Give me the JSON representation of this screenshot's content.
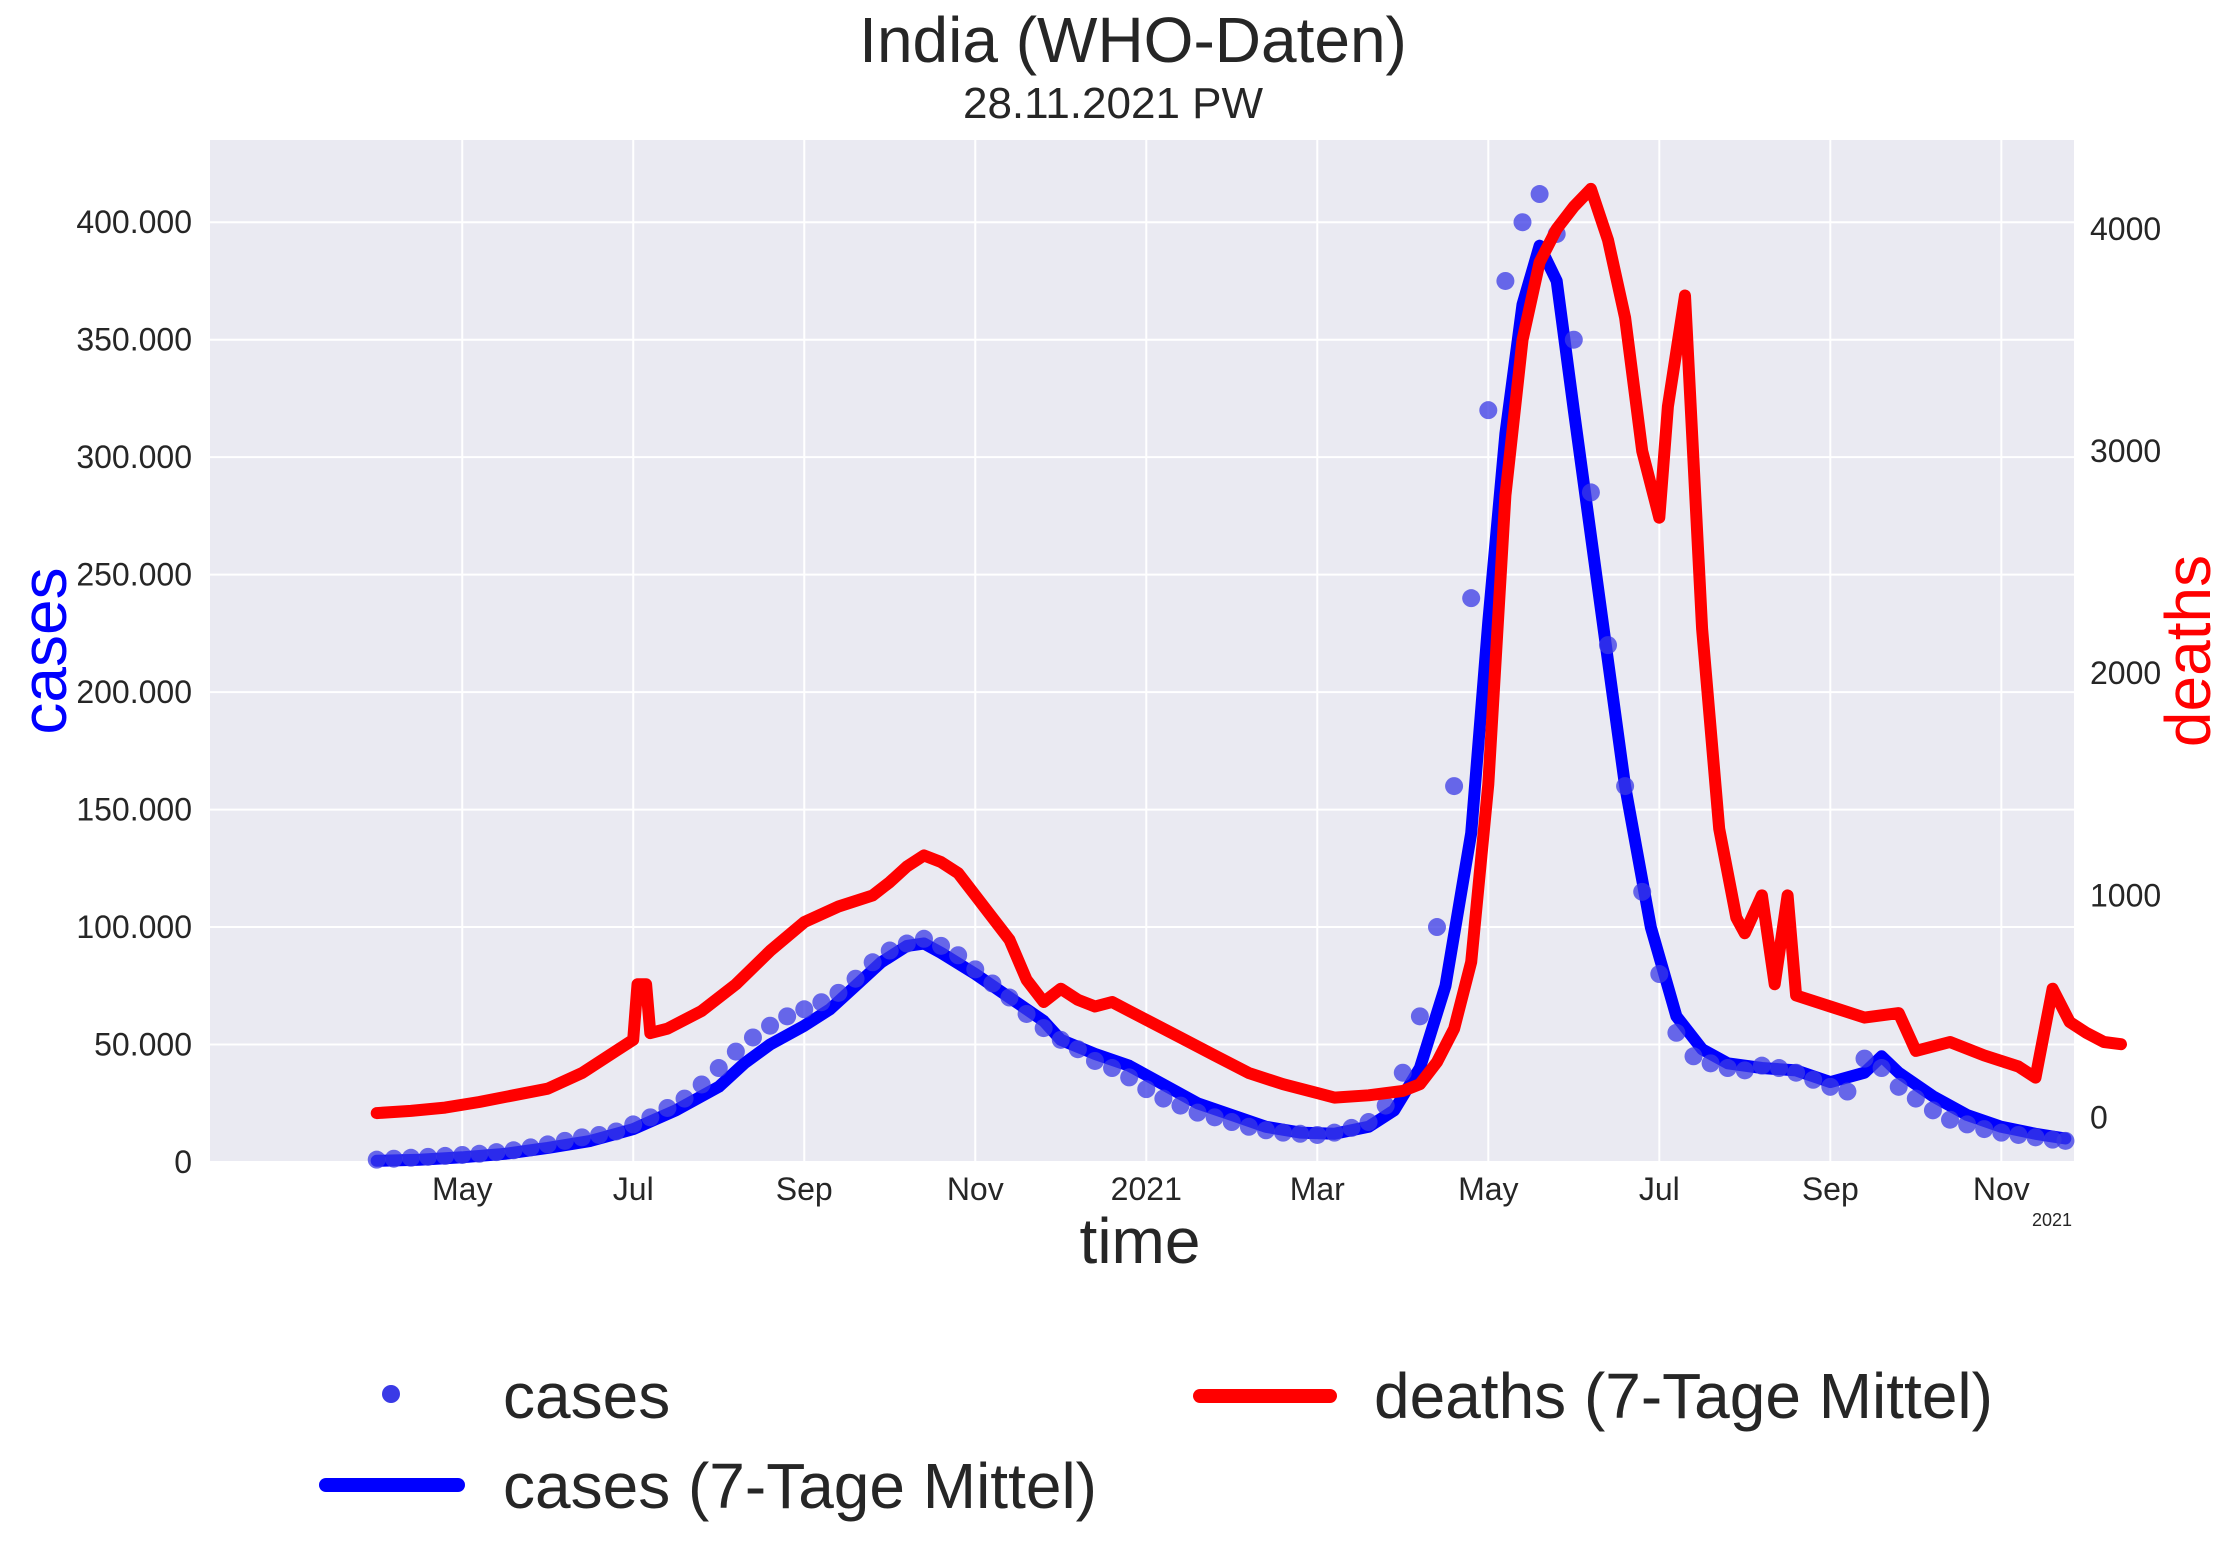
{
  "title": "India  (WHO-Daten)",
  "subtitle": "28.11.2021 PW",
  "chart_data": {
    "type": "line",
    "xlabel": "time",
    "x_offset_label": "2021",
    "x_ticks": [
      "May",
      "Jul",
      "Sep",
      "Nov",
      "2021",
      "Mar",
      "May",
      "Jul",
      "Sep",
      "Nov"
    ],
    "x_tick_months": [
      1,
      3,
      5,
      7,
      9,
      11,
      13,
      15,
      17,
      19
    ],
    "x_range_months": [
      -1.95,
      19.85
    ],
    "y_left": {
      "label": "cases",
      "range": [
        0,
        435000
      ],
      "ticks": [
        0,
        50000,
        100000,
        150000,
        200000,
        250000,
        300000,
        350000,
        400000
      ],
      "tick_labels": [
        "0",
        "50.000",
        "100.000",
        "150.000",
        "200.000",
        "250.000",
        "300.000",
        "350.000",
        "400.000"
      ]
    },
    "y_right": {
      "label": "deaths",
      "range": [
        -200,
        4400
      ],
      "ticks": [
        0,
        1000,
        2000,
        3000,
        4000
      ],
      "tick_labels": [
        "0",
        "1000",
        "2000",
        "3000",
        "4000"
      ]
    },
    "grid": true,
    "legend_position": "bottom",
    "series": [
      {
        "name": "cases",
        "style": "scatter",
        "axis": "left",
        "color": "#3a3ae6",
        "points": [
          [
            0.0,
            1000
          ],
          [
            0.2,
            1400
          ],
          [
            0.4,
            1800
          ],
          [
            0.6,
            2200
          ],
          [
            0.8,
            2600
          ],
          [
            1.0,
            3000
          ],
          [
            1.2,
            3500
          ],
          [
            1.4,
            4200
          ],
          [
            1.6,
            5000
          ],
          [
            1.8,
            6200
          ],
          [
            2.0,
            7500
          ],
          [
            2.2,
            9000
          ],
          [
            2.4,
            10500
          ],
          [
            2.6,
            11500
          ],
          [
            2.8,
            13000
          ],
          [
            3.0,
            16000
          ],
          [
            3.2,
            19000
          ],
          [
            3.4,
            23000
          ],
          [
            3.6,
            27000
          ],
          [
            3.8,
            33000
          ],
          [
            4.0,
            40000
          ],
          [
            4.2,
            47000
          ],
          [
            4.4,
            53000
          ],
          [
            4.6,
            58000
          ],
          [
            4.8,
            62000
          ],
          [
            5.0,
            65000
          ],
          [
            5.2,
            68000
          ],
          [
            5.4,
            72000
          ],
          [
            5.6,
            78000
          ],
          [
            5.8,
            85000
          ],
          [
            6.0,
            90000
          ],
          [
            6.2,
            93000
          ],
          [
            6.4,
            95000
          ],
          [
            6.6,
            92000
          ],
          [
            6.8,
            88000
          ],
          [
            7.0,
            82000
          ],
          [
            7.2,
            76000
          ],
          [
            7.4,
            70000
          ],
          [
            7.6,
            63000
          ],
          [
            7.8,
            57000
          ],
          [
            8.0,
            52000
          ],
          [
            8.2,
            48000
          ],
          [
            8.4,
            43000
          ],
          [
            8.6,
            40000
          ],
          [
            8.8,
            36000
          ],
          [
            9.0,
            31000
          ],
          [
            9.2,
            27000
          ],
          [
            9.4,
            24000
          ],
          [
            9.6,
            21000
          ],
          [
            9.8,
            19000
          ],
          [
            10.0,
            17000
          ],
          [
            10.2,
            15000
          ],
          [
            10.4,
            13500
          ],
          [
            10.6,
            12500
          ],
          [
            10.8,
            12000
          ],
          [
            11.0,
            11500
          ],
          [
            11.2,
            12500
          ],
          [
            11.4,
            14500
          ],
          [
            11.6,
            17000
          ],
          [
            11.8,
            24000
          ],
          [
            12.0,
            38000
          ],
          [
            12.2,
            62000
          ],
          [
            12.4,
            100000
          ],
          [
            12.6,
            160000
          ],
          [
            12.8,
            240000
          ],
          [
            13.0,
            320000
          ],
          [
            13.2,
            375000
          ],
          [
            13.4,
            400000
          ],
          [
            13.6,
            412000
          ],
          [
            13.8,
            395000
          ],
          [
            14.0,
            350000
          ],
          [
            14.2,
            285000
          ],
          [
            14.4,
            220000
          ],
          [
            14.6,
            160000
          ],
          [
            14.8,
            115000
          ],
          [
            15.0,
            80000
          ],
          [
            15.2,
            55000
          ],
          [
            15.4,
            45000
          ],
          [
            15.6,
            42000
          ],
          [
            15.8,
            40000
          ],
          [
            16.0,
            39000
          ],
          [
            16.2,
            41000
          ],
          [
            16.4,
            40000
          ],
          [
            16.6,
            38000
          ],
          [
            16.8,
            35000
          ],
          [
            17.0,
            32000
          ],
          [
            17.2,
            30000
          ],
          [
            17.4,
            44000
          ],
          [
            17.6,
            40000
          ],
          [
            17.8,
            32000
          ],
          [
            18.0,
            27000
          ],
          [
            18.2,
            22000
          ],
          [
            18.4,
            18000
          ],
          [
            18.6,
            16000
          ],
          [
            18.8,
            14000
          ],
          [
            19.0,
            12500
          ],
          [
            19.2,
            11500
          ],
          [
            19.4,
            10500
          ],
          [
            19.6,
            9500
          ],
          [
            19.75,
            9000
          ]
        ]
      },
      {
        "name": "cases (7-Tage Mittel)",
        "style": "line",
        "axis": "left",
        "color": "#0000ff",
        "points": [
          [
            0.0,
            500
          ],
          [
            0.5,
            1000
          ],
          [
            1.0,
            2000
          ],
          [
            1.5,
            3500
          ],
          [
            2.0,
            6000
          ],
          [
            2.5,
            9000
          ],
          [
            3.0,
            14000
          ],
          [
            3.5,
            22000
          ],
          [
            4.0,
            32000
          ],
          [
            4.3,
            42000
          ],
          [
            4.6,
            50000
          ],
          [
            5.0,
            58000
          ],
          [
            5.3,
            65000
          ],
          [
            5.6,
            75000
          ],
          [
            5.9,
            85000
          ],
          [
            6.2,
            92000
          ],
          [
            6.4,
            93000
          ],
          [
            6.6,
            89000
          ],
          [
            7.0,
            80000
          ],
          [
            7.4,
            70000
          ],
          [
            7.8,
            60000
          ],
          [
            8.0,
            52000
          ],
          [
            8.4,
            46000
          ],
          [
            8.8,
            41000
          ],
          [
            9.2,
            33000
          ],
          [
            9.6,
            25000
          ],
          [
            10.0,
            20000
          ],
          [
            10.4,
            15000
          ],
          [
            10.8,
            12500
          ],
          [
            11.2,
            12000
          ],
          [
            11.6,
            15000
          ],
          [
            11.9,
            22000
          ],
          [
            12.2,
            40000
          ],
          [
            12.5,
            75000
          ],
          [
            12.8,
            140000
          ],
          [
            13.0,
            230000
          ],
          [
            13.2,
            310000
          ],
          [
            13.4,
            365000
          ],
          [
            13.6,
            390000
          ],
          [
            13.8,
            375000
          ],
          [
            14.0,
            320000
          ],
          [
            14.3,
            240000
          ],
          [
            14.6,
            160000
          ],
          [
            14.9,
            100000
          ],
          [
            15.2,
            62000
          ],
          [
            15.5,
            48000
          ],
          [
            15.8,
            42000
          ],
          [
            16.2,
            40000
          ],
          [
            16.6,
            39000
          ],
          [
            17.0,
            34000
          ],
          [
            17.4,
            38000
          ],
          [
            17.6,
            45000
          ],
          [
            17.8,
            38000
          ],
          [
            18.2,
            28000
          ],
          [
            18.6,
            20000
          ],
          [
            19.0,
            15000
          ],
          [
            19.4,
            12000
          ],
          [
            19.75,
            10000
          ]
        ]
      },
      {
        "name": "deaths (7-Tage Mittel)",
        "style": "line",
        "axis": "right",
        "color": "#ff0000",
        "points": [
          [
            0.0,
            20
          ],
          [
            0.4,
            30
          ],
          [
            0.8,
            45
          ],
          [
            1.2,
            70
          ],
          [
            1.6,
            100
          ],
          [
            2.0,
            130
          ],
          [
            2.4,
            200
          ],
          [
            2.8,
            300
          ],
          [
            3.0,
            350
          ],
          [
            3.05,
            600
          ],
          [
            3.15,
            600
          ],
          [
            3.2,
            380
          ],
          [
            3.4,
            400
          ],
          [
            3.8,
            480
          ],
          [
            4.2,
            600
          ],
          [
            4.6,
            750
          ],
          [
            5.0,
            880
          ],
          [
            5.4,
            950
          ],
          [
            5.8,
            1000
          ],
          [
            6.0,
            1060
          ],
          [
            6.2,
            1130
          ],
          [
            6.4,
            1180
          ],
          [
            6.6,
            1150
          ],
          [
            6.8,
            1100
          ],
          [
            7.0,
            1000
          ],
          [
            7.2,
            900
          ],
          [
            7.4,
            800
          ],
          [
            7.6,
            620
          ],
          [
            7.8,
            520
          ],
          [
            8.0,
            580
          ],
          [
            8.2,
            530
          ],
          [
            8.4,
            500
          ],
          [
            8.6,
            520
          ],
          [
            8.8,
            480
          ],
          [
            9.0,
            440
          ],
          [
            9.4,
            360
          ],
          [
            9.8,
            280
          ],
          [
            10.2,
            200
          ],
          [
            10.6,
            150
          ],
          [
            11.0,
            110
          ],
          [
            11.2,
            90
          ],
          [
            11.6,
            100
          ],
          [
            12.0,
            120
          ],
          [
            12.2,
            150
          ],
          [
            12.4,
            250
          ],
          [
            12.6,
            400
          ],
          [
            12.8,
            700
          ],
          [
            13.0,
            1500
          ],
          [
            13.2,
            2800
          ],
          [
            13.4,
            3500
          ],
          [
            13.6,
            3850
          ],
          [
            13.8,
            4000
          ],
          [
            14.0,
            4100
          ],
          [
            14.2,
            4180
          ],
          [
            14.4,
            3950
          ],
          [
            14.6,
            3600
          ],
          [
            14.8,
            3000
          ],
          [
            15.0,
            2700
          ],
          [
            15.1,
            3200
          ],
          [
            15.3,
            3700
          ],
          [
            15.5,
            2200
          ],
          [
            15.7,
            1300
          ],
          [
            15.9,
            900
          ],
          [
            16.0,
            830
          ],
          [
            16.2,
            1000
          ],
          [
            16.35,
            600
          ],
          [
            16.5,
            1000
          ],
          [
            16.6,
            550
          ],
          [
            17.0,
            500
          ],
          [
            17.4,
            450
          ],
          [
            17.8,
            470
          ],
          [
            18.0,
            300
          ],
          [
            18.4,
            340
          ],
          [
            18.8,
            280
          ],
          [
            19.2,
            230
          ],
          [
            19.4,
            180
          ],
          [
            19.6,
            580
          ],
          [
            19.8,
            430
          ],
          [
            20.0,
            380
          ],
          [
            20.2,
            340
          ],
          [
            20.4,
            330
          ]
        ]
      }
    ]
  },
  "legend": [
    {
      "label": "cases",
      "kind": "dot",
      "color": "#3a3ae6"
    },
    {
      "label": "cases (7-Tage Mittel)",
      "kind": "line",
      "color": "#0000ff"
    },
    {
      "label": "deaths (7-Tage Mittel)",
      "kind": "line",
      "color": "#ff0000"
    }
  ]
}
